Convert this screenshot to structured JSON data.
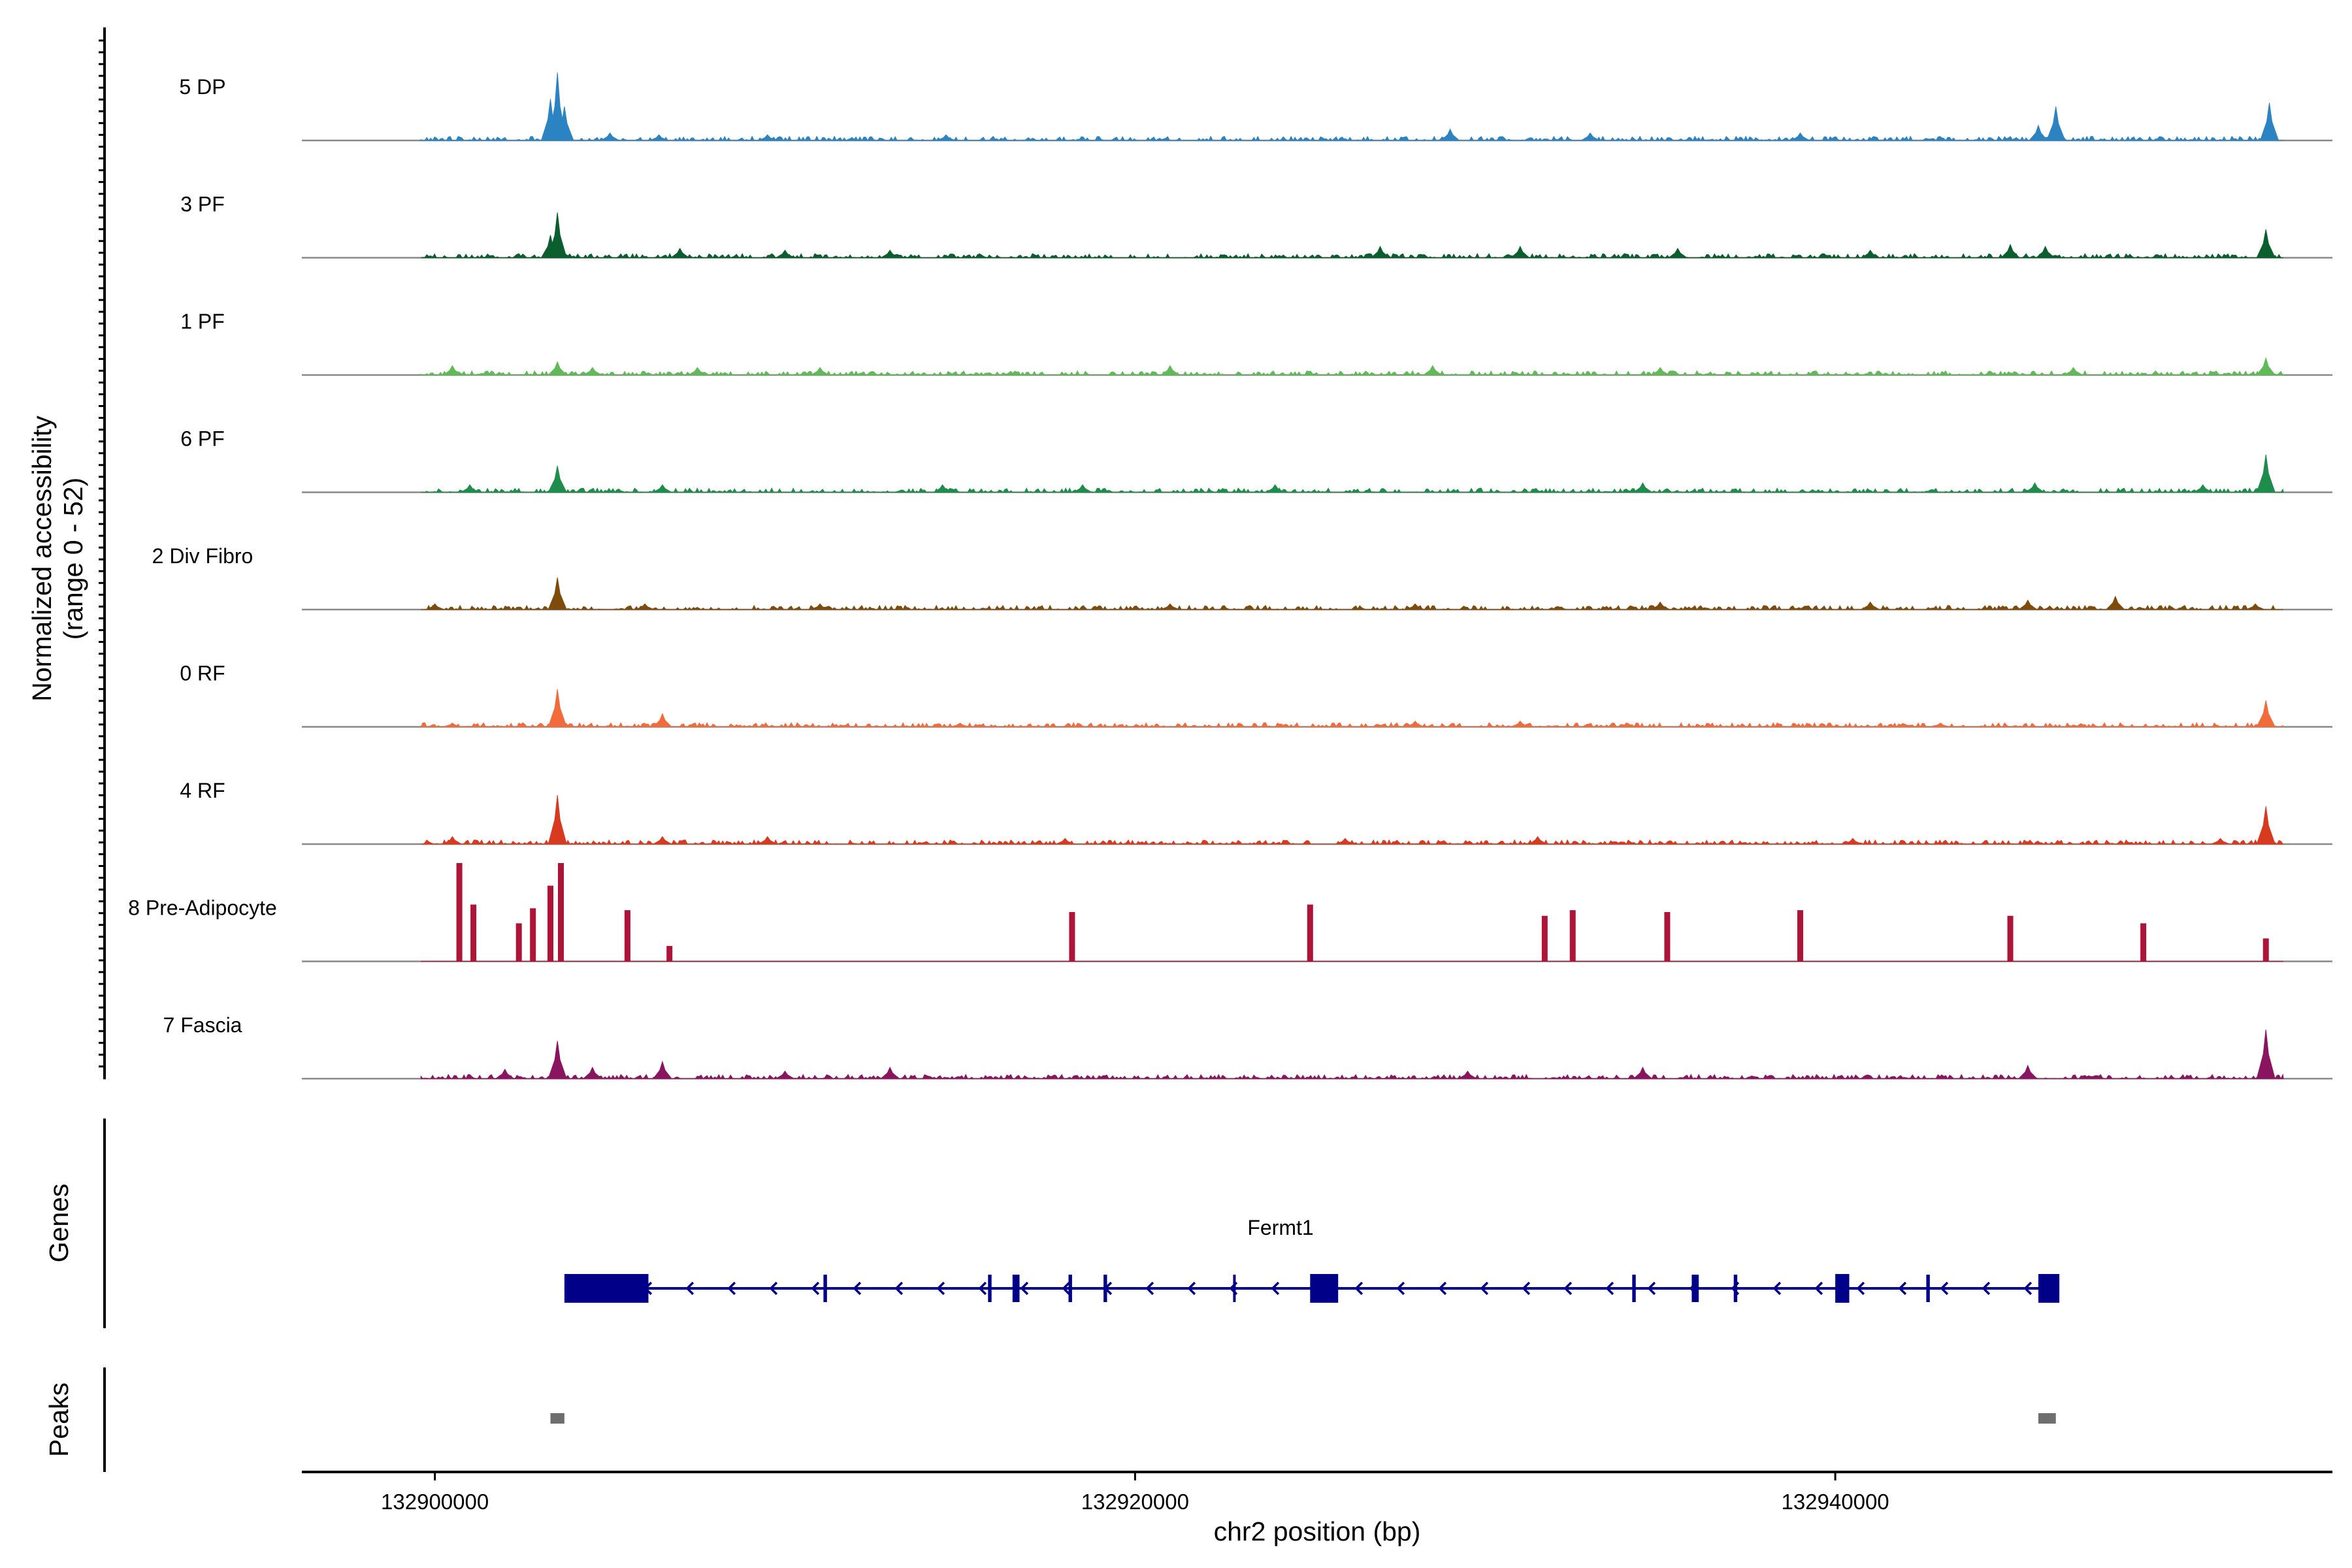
{
  "chart_data": {
    "type": "area",
    "title": "",
    "ylabel_line1": "Normalized accessibility",
    "ylabel_line2": "(range 0 - 52)",
    "ylim": [
      0,
      52
    ],
    "xlabel": "chr2 position (bp)",
    "xlim": [
      132896200,
      132954200
    ],
    "x_ticks": [
      {
        "value": 132900000,
        "label": "132900000"
      },
      {
        "value": 132920000,
        "label": "132920000"
      },
      {
        "value": 132940000,
        "label": "132940000"
      }
    ],
    "tracks": [
      {
        "name": "5 DP",
        "color": "#2b83c2",
        "peaks": [
          {
            "x": 132903500,
            "y": 36
          },
          {
            "x": 132903300,
            "y": 22
          },
          {
            "x": 132903700,
            "y": 18
          },
          {
            "x": 132905000,
            "y": 4
          },
          {
            "x": 132906400,
            "y": 3
          },
          {
            "x": 132909500,
            "y": 3
          },
          {
            "x": 132914600,
            "y": 3
          },
          {
            "x": 132929000,
            "y": 6
          },
          {
            "x": 132933000,
            "y": 4
          },
          {
            "x": 132946300,
            "y": 18
          },
          {
            "x": 132945800,
            "y": 8
          },
          {
            "x": 132952400,
            "y": 20
          },
          {
            "x": 132939000,
            "y": 4
          }
        ]
      },
      {
        "name": "3 PF",
        "color": "#0b5e2e",
        "peaks": [
          {
            "x": 132903500,
            "y": 24
          },
          {
            "x": 132903300,
            "y": 12
          },
          {
            "x": 132907000,
            "y": 5
          },
          {
            "x": 132910000,
            "y": 4
          },
          {
            "x": 132913000,
            "y": 4
          },
          {
            "x": 132927000,
            "y": 6
          },
          {
            "x": 132931000,
            "y": 6
          },
          {
            "x": 132935500,
            "y": 5
          },
          {
            "x": 132941000,
            "y": 4
          },
          {
            "x": 132945000,
            "y": 7
          },
          {
            "x": 132946000,
            "y": 6
          },
          {
            "x": 132952300,
            "y": 15
          }
        ]
      },
      {
        "name": "1 PF",
        "color": "#5fba57",
        "peaks": [
          {
            "x": 132903500,
            "y": 7
          },
          {
            "x": 132900500,
            "y": 5
          },
          {
            "x": 132904500,
            "y": 4
          },
          {
            "x": 132907500,
            "y": 4
          },
          {
            "x": 132911000,
            "y": 4
          },
          {
            "x": 132921000,
            "y": 5
          },
          {
            "x": 132928500,
            "y": 5
          },
          {
            "x": 132935000,
            "y": 4
          },
          {
            "x": 132946800,
            "y": 4
          },
          {
            "x": 132952300,
            "y": 9
          }
        ]
      },
      {
        "name": "6 PF",
        "color": "#1e8c4a",
        "peaks": [
          {
            "x": 132903500,
            "y": 14
          },
          {
            "x": 132901000,
            "y": 4
          },
          {
            "x": 132906500,
            "y": 4
          },
          {
            "x": 132914500,
            "y": 4
          },
          {
            "x": 132918500,
            "y": 4
          },
          {
            "x": 132924000,
            "y": 4
          },
          {
            "x": 132934500,
            "y": 5
          },
          {
            "x": 132945700,
            "y": 5
          },
          {
            "x": 132950500,
            "y": 4
          },
          {
            "x": 132952300,
            "y": 20
          }
        ]
      },
      {
        "name": "2 Div Fibro",
        "color": "#7f4b0b",
        "peaks": [
          {
            "x": 132903500,
            "y": 17
          },
          {
            "x": 132900000,
            "y": 3
          },
          {
            "x": 132906000,
            "y": 3
          },
          {
            "x": 132911000,
            "y": 3
          },
          {
            "x": 132921000,
            "y": 3
          },
          {
            "x": 132928000,
            "y": 3
          },
          {
            "x": 132935000,
            "y": 4
          },
          {
            "x": 132941000,
            "y": 4
          },
          {
            "x": 132945500,
            "y": 5
          },
          {
            "x": 132948000,
            "y": 7
          },
          {
            "x": 132952000,
            "y": 3
          }
        ]
      },
      {
        "name": "0 RF",
        "color": "#f26b3a",
        "peaks": [
          {
            "x": 132903500,
            "y": 20
          },
          {
            "x": 132906500,
            "y": 7
          },
          {
            "x": 132900500,
            "y": 2
          },
          {
            "x": 132915000,
            "y": 2
          },
          {
            "x": 132928000,
            "y": 3
          },
          {
            "x": 132931000,
            "y": 3
          },
          {
            "x": 132943000,
            "y": 2
          },
          {
            "x": 132952300,
            "y": 14
          }
        ]
      },
      {
        "name": "4 RF",
        "color": "#d73a1f",
        "peaks": [
          {
            "x": 132903500,
            "y": 26
          },
          {
            "x": 132900500,
            "y": 4
          },
          {
            "x": 132906500,
            "y": 4
          },
          {
            "x": 132909500,
            "y": 4
          },
          {
            "x": 132918000,
            "y": 3
          },
          {
            "x": 132926000,
            "y": 3
          },
          {
            "x": 132931500,
            "y": 4
          },
          {
            "x": 132940500,
            "y": 3
          },
          {
            "x": 132951000,
            "y": 3
          },
          {
            "x": 132952300,
            "y": 20
          }
        ]
      },
      {
        "name": "8 Pre-Adipocyte",
        "color": "#ad1438",
        "peaks": [
          {
            "x": 132900700,
            "y": 52
          },
          {
            "x": 132901100,
            "y": 30
          },
          {
            "x": 132902400,
            "y": 20
          },
          {
            "x": 132902800,
            "y": 28
          },
          {
            "x": 132903300,
            "y": 40
          },
          {
            "x": 132903600,
            "y": 52
          },
          {
            "x": 132905500,
            "y": 27
          },
          {
            "x": 132906700,
            "y": 8
          },
          {
            "x": 132918200,
            "y": 26
          },
          {
            "x": 132925000,
            "y": 30
          },
          {
            "x": 132931700,
            "y": 24
          },
          {
            "x": 132932500,
            "y": 27
          },
          {
            "x": 132935200,
            "y": 26
          },
          {
            "x": 132939000,
            "y": 27
          },
          {
            "x": 132945000,
            "y": 24
          },
          {
            "x": 132948800,
            "y": 20
          },
          {
            "x": 132952300,
            "y": 12
          }
        ]
      },
      {
        "name": "7 Fascia",
        "color": "#8b1460",
        "peaks": [
          {
            "x": 132903500,
            "y": 20
          },
          {
            "x": 132902000,
            "y": 5
          },
          {
            "x": 132904500,
            "y": 6
          },
          {
            "x": 132906500,
            "y": 9
          },
          {
            "x": 132910000,
            "y": 4
          },
          {
            "x": 132913000,
            "y": 6
          },
          {
            "x": 132929500,
            "y": 4
          },
          {
            "x": 132934500,
            "y": 6
          },
          {
            "x": 132945500,
            "y": 7
          },
          {
            "x": 132952300,
            "y": 26
          }
        ]
      }
    ],
    "gene": {
      "label": "Genes",
      "name": "Fermt1",
      "strand": "-",
      "start": 132903700,
      "end": 132946400,
      "color": "#000088",
      "exons": [
        {
          "start": 132903700,
          "end": 132906100
        },
        {
          "start": 132911100,
          "end": 132911200
        },
        {
          "start": 132915800,
          "end": 132915900
        },
        {
          "start": 132916500,
          "end": 132916700
        },
        {
          "start": 132918100,
          "end": 132918200
        },
        {
          "start": 132919100,
          "end": 132919200
        },
        {
          "start": 132922800,
          "end": 132922850
        },
        {
          "start": 132925000,
          "end": 132925800
        },
        {
          "start": 132934200,
          "end": 132934300
        },
        {
          "start": 132935900,
          "end": 132936100
        },
        {
          "start": 132937100,
          "end": 132937200
        },
        {
          "start": 132940000,
          "end": 132940400
        },
        {
          "start": 132942600,
          "end": 132942700
        },
        {
          "start": 132945800,
          "end": 132946400
        }
      ]
    },
    "peaks_track": {
      "label": "Peaks",
      "color": "#6e6e6e",
      "regions": [
        {
          "start": 132903300,
          "end": 132903700
        },
        {
          "start": 132945800,
          "end": 132946300
        }
      ]
    }
  }
}
